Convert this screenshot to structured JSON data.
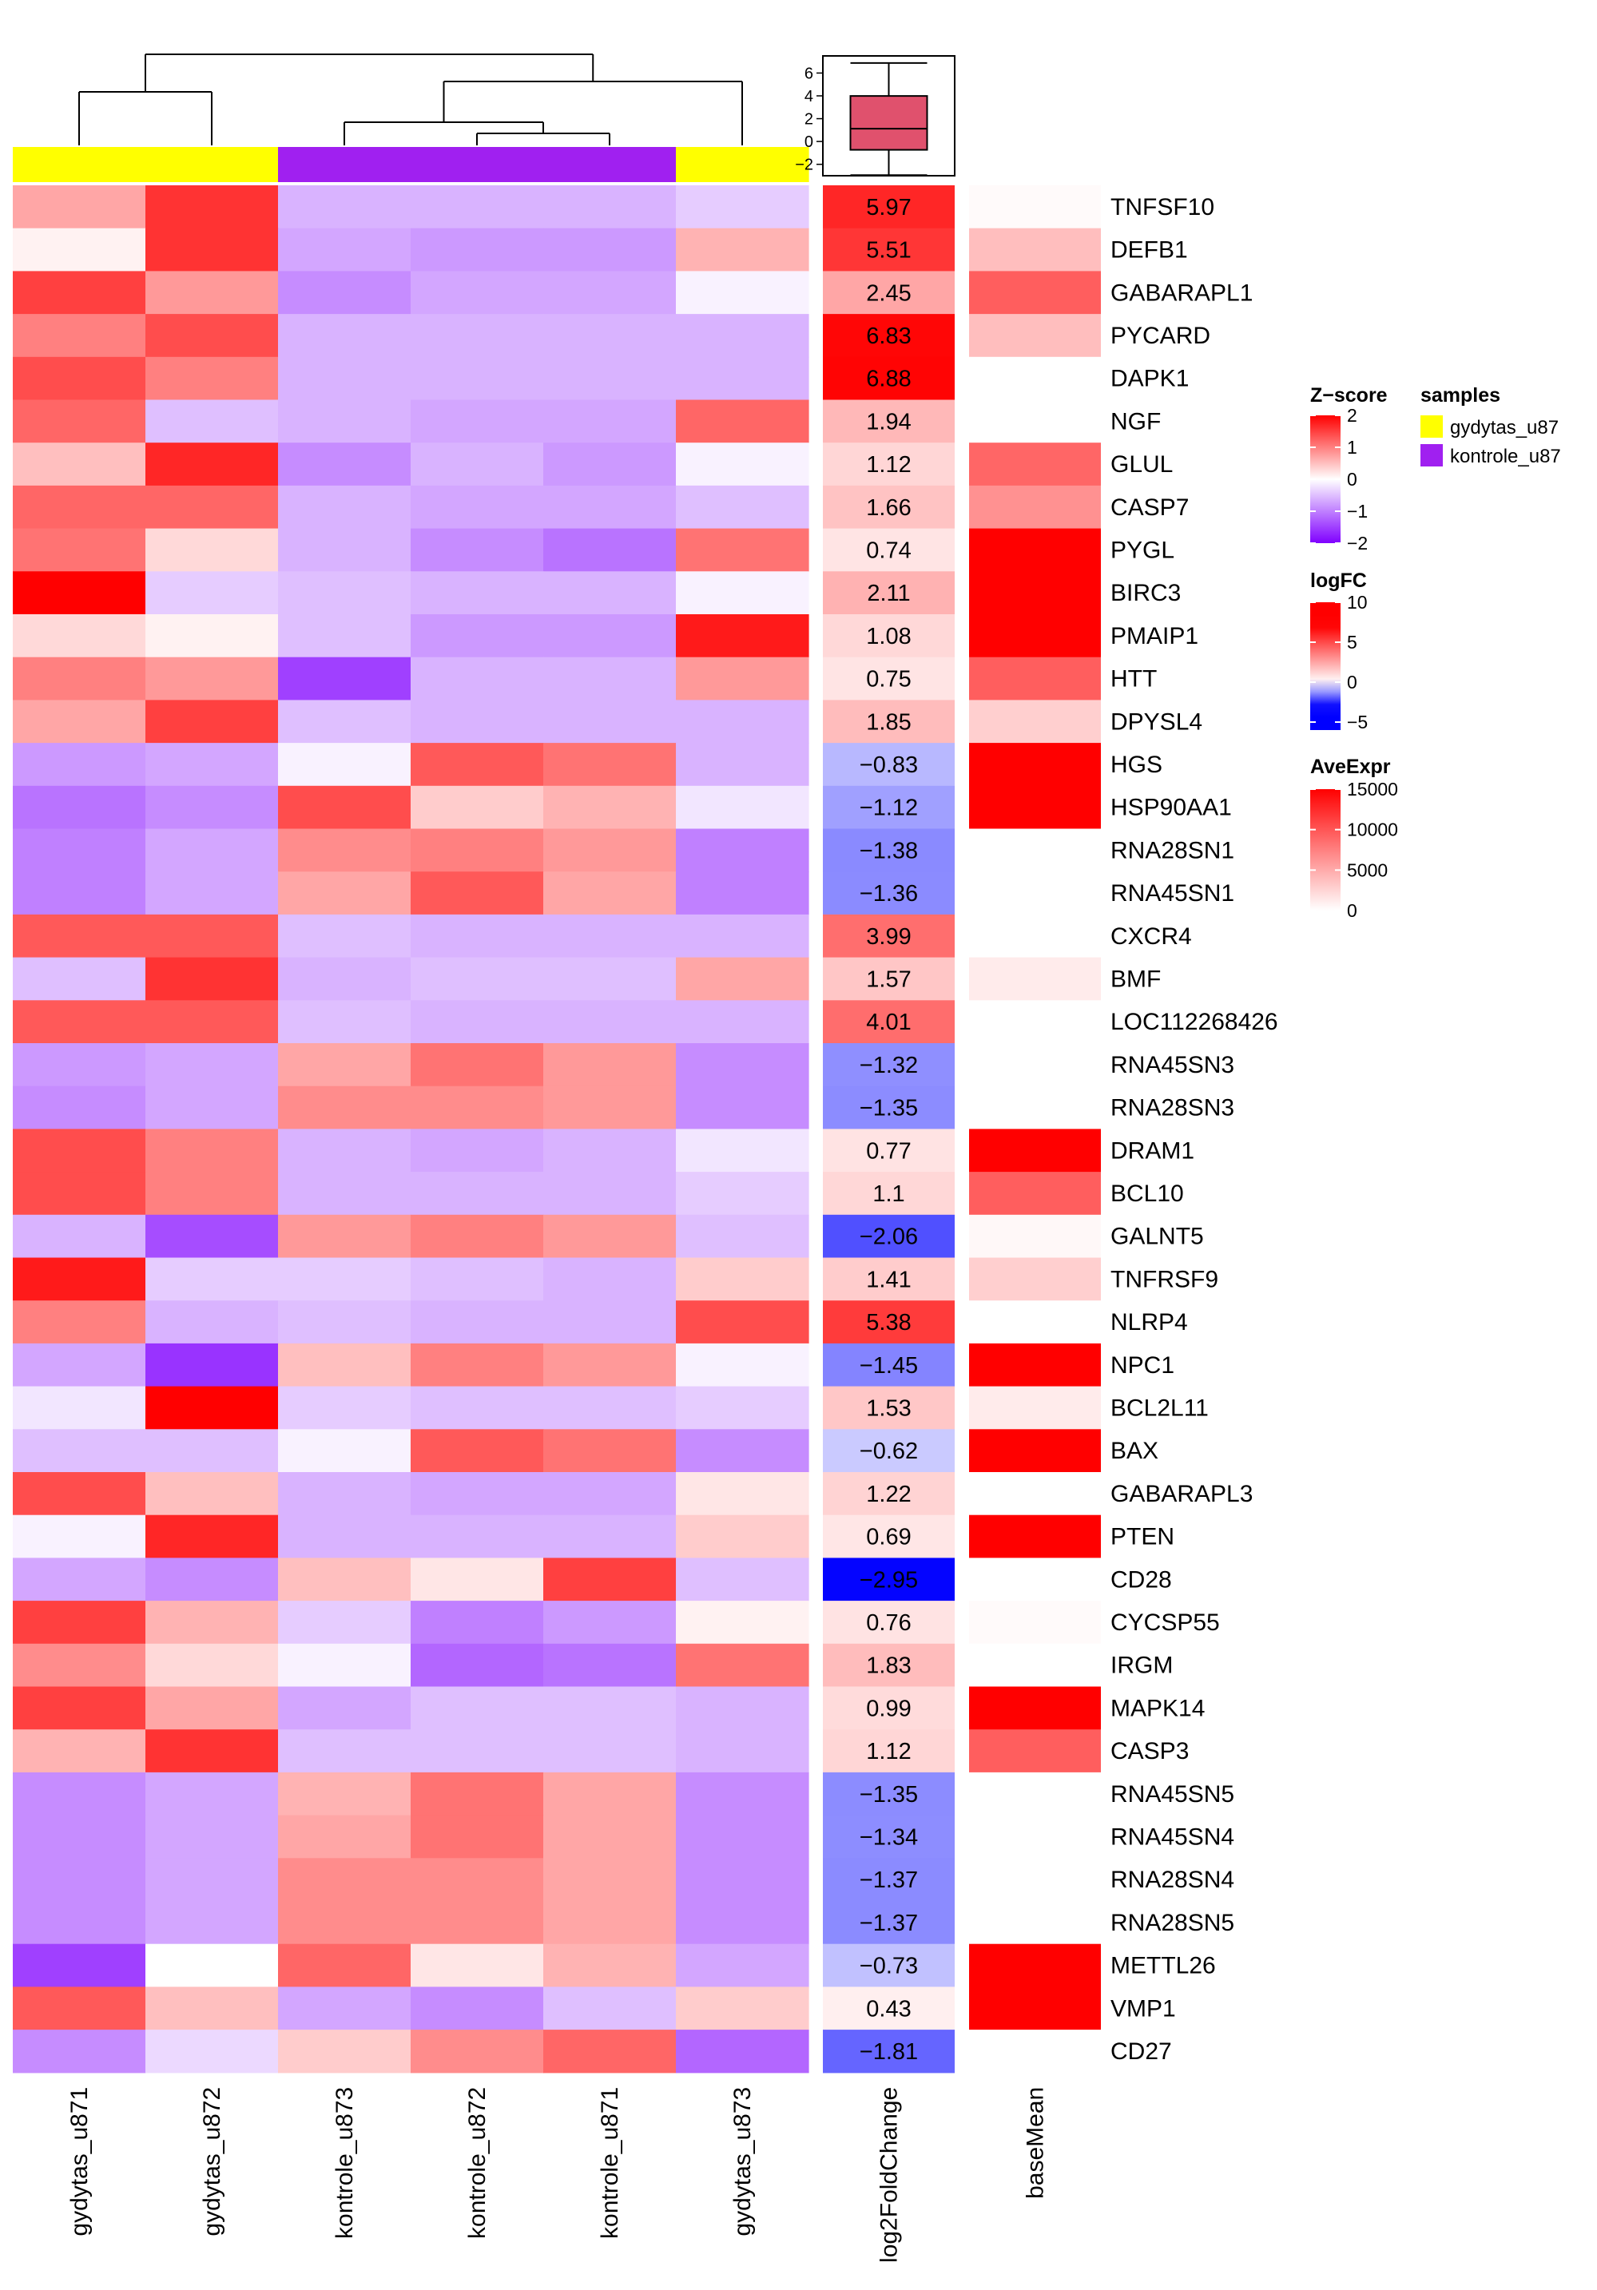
{
  "chart_data": {
    "type": "heatmap",
    "columns": [
      "gydytas_u871",
      "gydytas_u872",
      "kontrole_u873",
      "kontrole_u872",
      "kontrole_u871",
      "gydytas_u873"
    ],
    "column_groups": [
      "gydytas_u87",
      "gydytas_u87",
      "kontrole_u87",
      "kontrole_u87",
      "kontrole_u87",
      "gydytas_u87"
    ],
    "rows": [
      "TNFSF10",
      "DEFB1",
      "GABARAPL1",
      "PYCARD",
      "DAPK1",
      "NGF",
      "GLUL",
      "CASP7",
      "PYGL",
      "BIRC3",
      "PMAIP1",
      "HTT",
      "DPYSL4",
      "HGS",
      "HSP90AA1",
      "RNA28SN1",
      "RNA45SN1",
      "CXCR4",
      "BMF",
      "LOC112268426",
      "RNA45SN3",
      "RNA28SN3",
      "DRAM1",
      "BCL10",
      "GALNT5",
      "TNFRSF9",
      "NLRP4",
      "NPC1",
      "BCL2L11",
      "BAX",
      "GABARAPL3",
      "PTEN",
      "CD28",
      "CYCSP55",
      "IRGM",
      "MAPK14",
      "CASP3",
      "RNA45SN5",
      "RNA45SN4",
      "RNA28SN4",
      "RNA28SN5",
      "METTL26",
      "VMP1",
      "CD27"
    ],
    "zscore": [
      [
        0.7,
        1.6,
        -0.6,
        -0.6,
        -0.6,
        -0.4
      ],
      [
        0.1,
        1.6,
        -0.7,
        -0.8,
        -0.8,
        0.6
      ],
      [
        1.5,
        0.8,
        -0.9,
        -0.7,
        -0.7,
        -0.1
      ],
      [
        1.0,
        1.4,
        -0.6,
        -0.6,
        -0.6,
        -0.6
      ],
      [
        1.4,
        1.0,
        -0.6,
        -0.6,
        -0.6,
        -0.6
      ],
      [
        1.2,
        -0.5,
        -0.6,
        -0.7,
        -0.7,
        1.2
      ],
      [
        0.5,
        1.7,
        -0.9,
        -0.6,
        -0.8,
        -0.1
      ],
      [
        1.2,
        1.2,
        -0.6,
        -0.7,
        -0.7,
        -0.5
      ],
      [
        1.1,
        0.3,
        -0.6,
        -0.9,
        -1.1,
        1.1
      ],
      [
        2.0,
        -0.4,
        -0.5,
        -0.6,
        -0.6,
        -0.1
      ],
      [
        0.3,
        0.1,
        -0.5,
        -0.8,
        -0.8,
        1.8
      ],
      [
        1.0,
        0.8,
        -1.5,
        -0.6,
        -0.6,
        0.8
      ],
      [
        0.7,
        1.5,
        -0.5,
        -0.6,
        -0.6,
        -0.6
      ],
      [
        -0.8,
        -0.7,
        -0.1,
        1.3,
        1.1,
        -0.6
      ],
      [
        -1.1,
        -0.9,
        1.4,
        0.4,
        0.6,
        -0.2
      ],
      [
        -1.0,
        -0.7,
        0.9,
        1.0,
        0.8,
        -1.0
      ],
      [
        -1.0,
        -0.7,
        0.7,
        1.3,
        0.7,
        -1.0
      ],
      [
        1.3,
        1.3,
        -0.5,
        -0.6,
        -0.6,
        -0.6
      ],
      [
        -0.5,
        1.6,
        -0.6,
        -0.5,
        -0.5,
        0.7
      ],
      [
        1.3,
        1.3,
        -0.5,
        -0.6,
        -0.6,
        -0.6
      ],
      [
        -0.8,
        -0.7,
        0.7,
        1.1,
        0.8,
        -0.9
      ],
      [
        -0.9,
        -0.7,
        0.9,
        0.9,
        0.8,
        -0.9
      ],
      [
        1.4,
        1.0,
        -0.6,
        -0.7,
        -0.6,
        -0.2
      ],
      [
        1.4,
        1.0,
        -0.6,
        -0.6,
        -0.6,
        -0.4
      ],
      [
        -0.6,
        -1.4,
        0.8,
        1.0,
        0.8,
        -0.5
      ],
      [
        1.8,
        -0.4,
        -0.4,
        -0.5,
        -0.6,
        0.4
      ],
      [
        1.0,
        -0.6,
        -0.5,
        -0.6,
        -0.6,
        1.4
      ],
      [
        -0.7,
        -1.6,
        0.5,
        1.0,
        0.8,
        -0.1
      ],
      [
        -0.2,
        2.0,
        -0.4,
        -0.5,
        -0.5,
        -0.4
      ],
      [
        -0.5,
        -0.5,
        -0.1,
        1.3,
        1.1,
        -0.9
      ],
      [
        1.4,
        0.5,
        -0.6,
        -0.7,
        -0.7,
        0.2
      ],
      [
        -0.1,
        1.7,
        -0.6,
        -0.6,
        -0.6,
        0.4
      ],
      [
        -0.7,
        -0.9,
        0.5,
        0.2,
        1.5,
        -0.5
      ],
      [
        1.5,
        0.6,
        -0.4,
        -1.0,
        -0.8,
        0.1
      ],
      [
        0.9,
        0.3,
        -0.1,
        -1.2,
        -1.1,
        1.1
      ],
      [
        1.5,
        0.7,
        -0.7,
        -0.5,
        -0.5,
        -0.6
      ],
      [
        0.6,
        1.6,
        -0.5,
        -0.5,
        -0.5,
        -0.6
      ],
      [
        -0.9,
        -0.7,
        0.6,
        1.1,
        0.7,
        -0.9
      ],
      [
        -0.9,
        -0.7,
        0.7,
        1.1,
        0.7,
        -0.9
      ],
      [
        -0.9,
        -0.7,
        0.9,
        0.9,
        0.7,
        -0.9
      ],
      [
        -0.9,
        -0.7,
        0.9,
        0.9,
        0.7,
        -0.9
      ],
      [
        -1.5,
        0.0,
        1.2,
        0.2,
        0.6,
        -0.7
      ],
      [
        1.3,
        0.5,
        -0.7,
        -0.9,
        -0.5,
        0.4
      ],
      [
        -0.9,
        -0.3,
        0.4,
        0.9,
        1.2,
        -1.2
      ]
    ],
    "log2FoldChange": [
      5.97,
      5.51,
      2.45,
      6.83,
      6.88,
      1.94,
      1.12,
      1.66,
      0.74,
      2.11,
      1.08,
      0.75,
      1.85,
      -0.83,
      -1.12,
      -1.38,
      -1.36,
      3.99,
      1.57,
      4.01,
      -1.32,
      -1.35,
      0.77,
      1.1,
      -2.06,
      1.41,
      5.38,
      -1.45,
      1.53,
      -0.62,
      1.22,
      0.69,
      -2.95,
      0.76,
      1.83,
      0.99,
      1.12,
      -1.35,
      -1.34,
      -1.37,
      -1.37,
      -0.73,
      0.43,
      -1.81
    ],
    "log2FoldChange_labels": [
      "5.97",
      "5.51",
      "2.45",
      "6.83",
      "6.88",
      "1.94",
      "1.12",
      "1.66",
      "0.74",
      "2.11",
      "1.08",
      "0.75",
      "1.85",
      "−0.83",
      "−1.12",
      "−1.38",
      "−1.36",
      "3.99",
      "1.57",
      "4.01",
      "−1.32",
      "−1.35",
      "0.77",
      "1.1",
      "−2.06",
      "1.41",
      "5.38",
      "−1.45",
      "1.53",
      "−0.62",
      "1.22",
      "0.69",
      "−2.95",
      "0.76",
      "1.83",
      "0.99",
      "1.12",
      "−1.35",
      "−1.34",
      "−1.37",
      "−1.37",
      "−0.73",
      "0.43",
      "−1.81"
    ],
    "baseMean": [
      300,
      3800,
      9500,
      3800,
      0,
      0,
      9000,
      6500,
      15000,
      15000,
      15000,
      9500,
      2800,
      15000,
      15000,
      0,
      0,
      0,
      1200,
      0,
      0,
      0,
      15000,
      9500,
      400,
      2800,
      0,
      15000,
      1200,
      15000,
      0,
      15000,
      0,
      300,
      0,
      15000,
      9500,
      0,
      0,
      0,
      0,
      15000,
      15000,
      0
    ],
    "column_labels": [
      "log2FoldChange",
      "baseMean"
    ],
    "boxplot": {
      "ticks": [
        6,
        4,
        2,
        0,
        -2
      ],
      "tick_labels": [
        "6",
        "4",
        "2",
        "0",
        "−2"
      ],
      "ylim": [
        -3,
        7.5
      ],
      "whisker_low": -2.95,
      "q1": -0.73,
      "median": 1.12,
      "q3": 3.99,
      "whisker_high": 6.88
    },
    "legends": {
      "zscore": {
        "title": "Z−score",
        "ticks": [
          2,
          1,
          0,
          -1,
          -2
        ],
        "tick_labels": [
          "2",
          "1",
          "0",
          "−1",
          "−2"
        ],
        "range": [
          -2,
          2
        ]
      },
      "samples": {
        "title": "samples",
        "entries": [
          "gydytas_u87",
          "kontrole_u87"
        ],
        "colors": [
          "#ffff00",
          "#a020f0"
        ]
      },
      "logFC": {
        "title": "logFC",
        "ticks": [
          10,
          5,
          0,
          -5
        ],
        "tick_labels": [
          "10",
          "5",
          "0",
          "−5"
        ],
        "range": [
          -6,
          10
        ]
      },
      "aveexpr": {
        "title": "AveExpr",
        "ticks": [
          15000,
          10000,
          5000,
          0
        ],
        "tick_labels": [
          "15000",
          "10000",
          "5000",
          "0"
        ],
        "range": [
          0,
          15000
        ]
      }
    },
    "colors": {
      "low": "#0000ff",
      "mid": "#ffffff",
      "high": "#ff0000",
      "zlow": "#8000ff",
      "yellow": "#ffff00",
      "purple": "#a020f0"
    }
  }
}
